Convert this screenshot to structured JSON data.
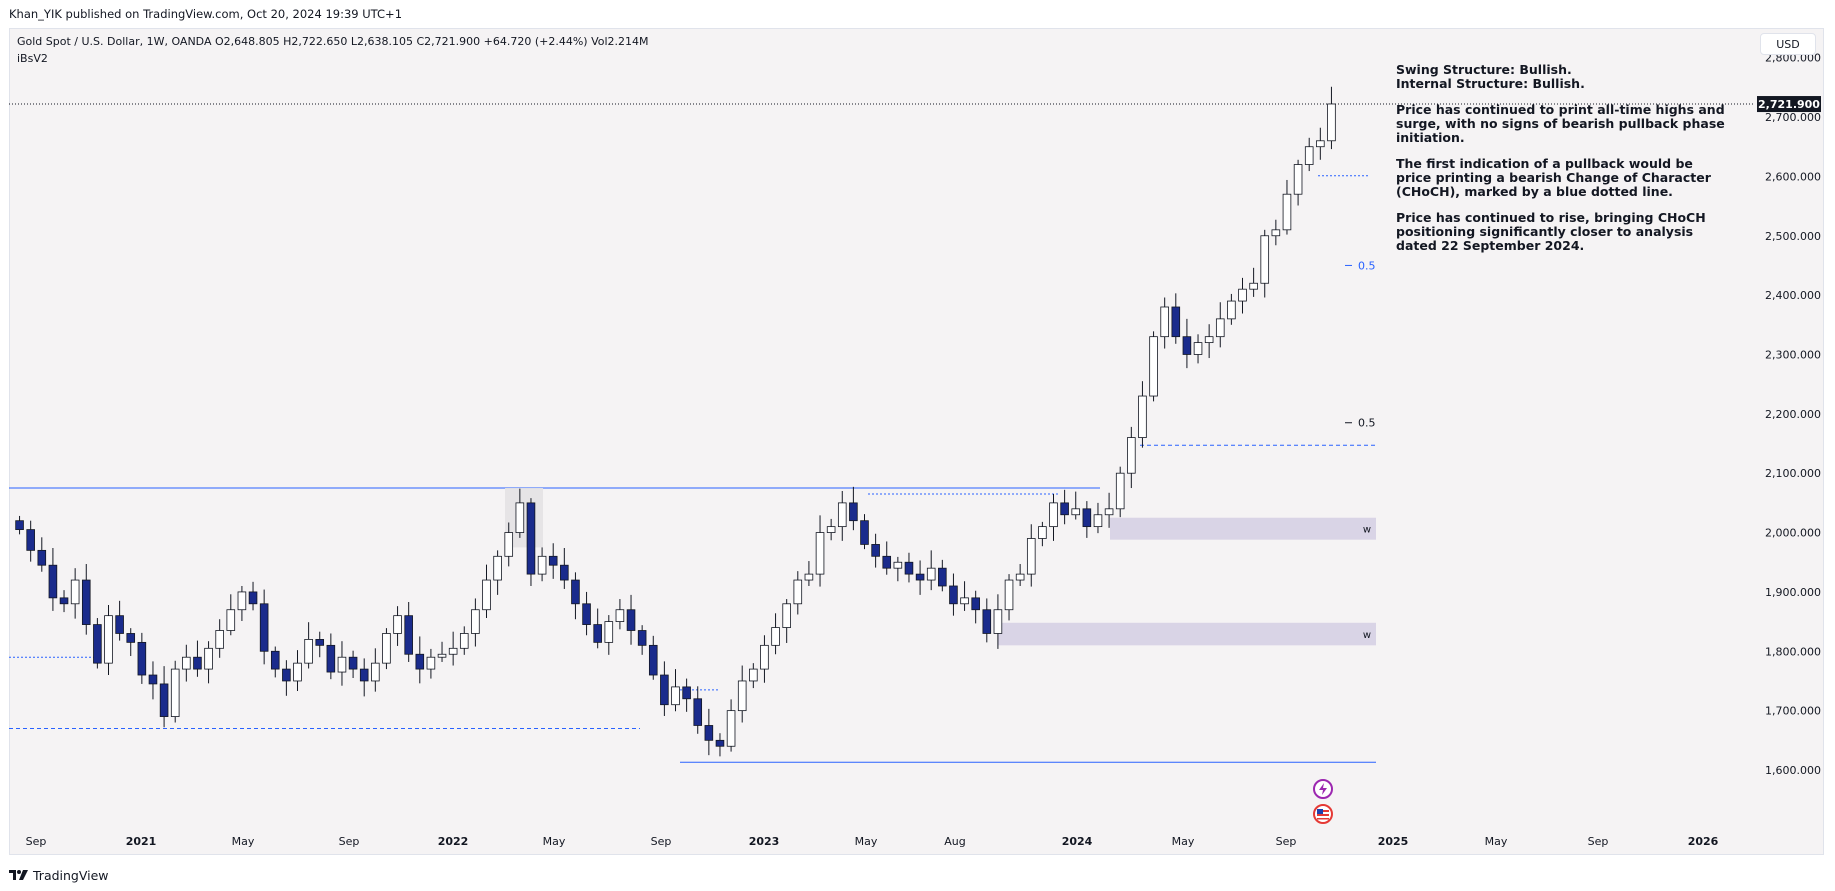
{
  "header": {
    "published": "Khan_YIK published on TradingView.com, Oct 20, 2024 19:39 UTC+1"
  },
  "legend": {
    "symbol_line": "Gold Spot / U.S. Dollar, 1W, OANDA  O2,648.805  H2,722.650  L2,638.105  C2,721.900  +64.720 (+2.44%)  Vol2.214M",
    "indicator": "iBsV2"
  },
  "currency_button": "USD",
  "last_price_tag": "2,721.900",
  "notes": [
    "Swing Structure: Bullish.\nInternal Structure: Bullish.",
    "Price has continued to print all-time highs and surge, with no signs of bearish pullback phase initiation.",
    "The first indication of a pullback would be price printing a bearish Change of Character (CHoCH), marked by a blue dotted line.",
    "Price has continued to rise, bringing CHoCH positioning significantly closer to analysis dated 22 September 2024."
  ],
  "footer": {
    "brand": "TradingView"
  },
  "colors": {
    "background": "#f5f3f4",
    "bull_candle": "#ffffff",
    "bear_candle": "#1a2b8c",
    "structure_line": "#2962ff",
    "zone_fill": "#d9d4e6",
    "text": "#131722"
  },
  "icons": [
    "tradingview-logo-icon",
    "lightning-event-icon",
    "us-flag-event-icon"
  ],
  "chart_data": {
    "type": "candlestick",
    "title": "Gold Spot / U.S. Dollar, 1W, OANDA",
    "ylim": [
      1520,
      2860
    ],
    "y_ticks": [
      "1,600.000",
      "1,700.000",
      "1,800.000",
      "1,900.000",
      "2,000.000",
      "2,100.000",
      "2,200.000",
      "2,300.000",
      "2,400.000",
      "2,500.000",
      "2,600.000",
      "2,700.000",
      "2,800.000"
    ],
    "x_ticks": [
      {
        "label": "Sep",
        "bold": false
      },
      {
        "label": "2021",
        "bold": true
      },
      {
        "label": "May",
        "bold": false
      },
      {
        "label": "Sep",
        "bold": false
      },
      {
        "label": "2022",
        "bold": true
      },
      {
        "label": "May",
        "bold": false
      },
      {
        "label": "Sep",
        "bold": false
      },
      {
        "label": "2023",
        "bold": true
      },
      {
        "label": "May",
        "bold": false
      },
      {
        "label": "Aug",
        "bold": false
      },
      {
        "label": "2024",
        "bold": true
      },
      {
        "label": "May",
        "bold": false
      },
      {
        "label": "Sep",
        "bold": false
      },
      {
        "label": "2025",
        "bold": true
      },
      {
        "label": "May",
        "bold": false
      },
      {
        "label": "Sep",
        "bold": false
      },
      {
        "label": "2026",
        "bold": true
      }
    ],
    "ohlc_close_path": [
      2005,
      1970,
      1945,
      1890,
      1880,
      1920,
      1845,
      1780,
      1860,
      1830,
      1815,
      1760,
      1745,
      1690,
      1770,
      1790,
      1770,
      1805,
      1835,
      1870,
      1900,
      1880,
      1800,
      1770,
      1750,
      1780,
      1820,
      1810,
      1765,
      1790,
      1770,
      1750,
      1780,
      1830,
      1860,
      1795,
      1770,
      1790,
      1795,
      1805,
      1830,
      1870,
      1920,
      1960,
      2000,
      2050,
      1930,
      1960,
      1945,
      1920,
      1880,
      1845,
      1815,
      1850,
      1870,
      1835,
      1810,
      1760,
      1710,
      1740,
      1720,
      1675,
      1650,
      1640,
      1700,
      1750,
      1770,
      1810,
      1840,
      1880,
      1920,
      1930,
      2000,
      2010,
      2050,
      2020,
      1980,
      1960,
      1940,
      1950,
      1930,
      1920,
      1940,
      1910,
      1880,
      1890,
      1870,
      1830,
      1870,
      1920,
      1930,
      1990,
      2010,
      2050,
      2030,
      2040,
      2010,
      2030,
      2040,
      2100,
      2160,
      2230,
      2330,
      2380,
      2330,
      2300,
      2320,
      2330,
      2360,
      2390,
      2410,
      2420,
      2500,
      2510,
      2570,
      2620,
      2650,
      2660,
      2722
    ],
    "annotations": [
      {
        "type": "hline",
        "label": "0.5",
        "value": 2450
      },
      {
        "type": "hline",
        "label": "0.5",
        "value": 2185
      },
      {
        "type": "zone",
        "label": "w",
        "from": 1988,
        "to": 2025
      },
      {
        "type": "zone",
        "label": "w",
        "from": 1810,
        "to": 1848
      },
      {
        "type": "level",
        "value": 2075
      },
      {
        "type": "level",
        "value": 1613
      }
    ],
    "last_price": 2721.9
  }
}
